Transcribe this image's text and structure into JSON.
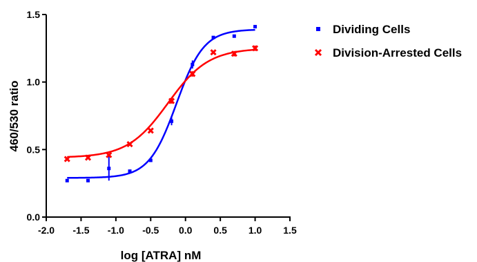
{
  "chart_data": {
    "type": "scatter",
    "title": "",
    "xlabel": "log [ATRA] nM",
    "ylabel": "460/530  ratio",
    "xlim": [
      -2.0,
      1.5
    ],
    "ylim": [
      0.0,
      1.5
    ],
    "x_ticks": [
      "-2.0",
      "-1.5",
      "-1.0",
      "-0.5",
      "0.0",
      "0.5",
      "1.0",
      "1.5"
    ],
    "y_ticks": [
      "0.0",
      "0.5",
      "1.0",
      "1.5"
    ],
    "grid": false,
    "legend_position": "top-right",
    "series": [
      {
        "name": "Dividing Cells",
        "color": "#0000ff",
        "marker": "square",
        "x": [
          -1.7,
          -1.4,
          -1.1,
          -0.8,
          -0.5,
          -0.2,
          0.1,
          0.4,
          0.7,
          1.0
        ],
        "y": [
          0.27,
          0.27,
          0.36,
          0.34,
          0.42,
          0.71,
          1.13,
          1.33,
          1.34,
          1.41
        ],
        "error": [
          0,
          0,
          0.09,
          0,
          0,
          0.03,
          0.03,
          0,
          0,
          0
        ],
        "fit": {
          "bottom": 0.29,
          "top": 1.39,
          "logEC50": -0.13,
          "hill": 2.2
        }
      },
      {
        "name": "Division-Arrested Cells",
        "color": "#ff0000",
        "marker": "x",
        "x": [
          -1.7,
          -1.4,
          -1.1,
          -0.8,
          -0.5,
          -0.2,
          0.1,
          0.4,
          0.7,
          1.0
        ],
        "y": [
          0.43,
          0.44,
          0.46,
          0.54,
          0.64,
          0.86,
          1.06,
          1.22,
          1.21,
          1.25
        ],
        "error": [
          0,
          0,
          0,
          0,
          0,
          0.02,
          0.02,
          0,
          0.02,
          0.02
        ],
        "fit": {
          "bottom": 0.44,
          "top": 1.25,
          "logEC50": -0.25,
          "hill": 1.5
        }
      }
    ]
  }
}
